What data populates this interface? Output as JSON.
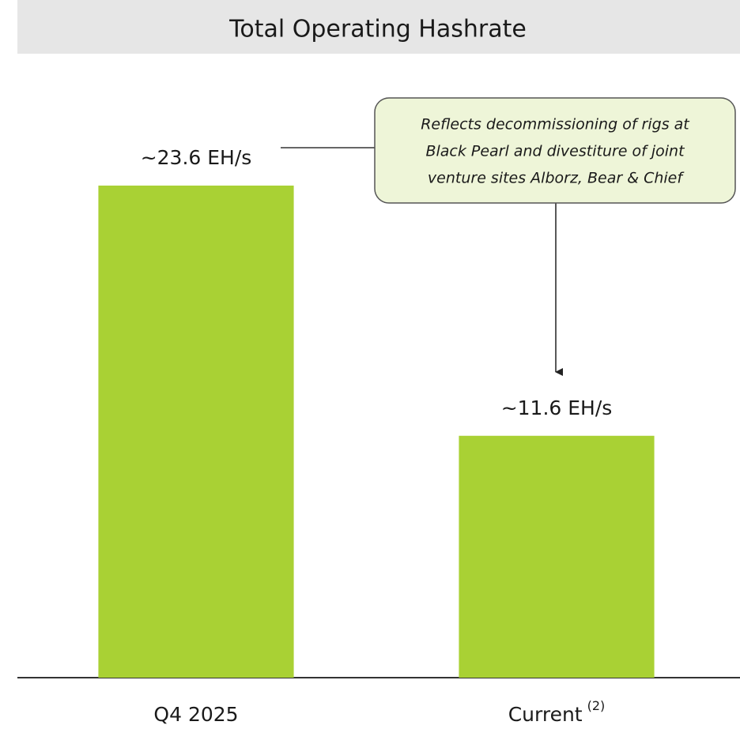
{
  "chart_data": {
    "type": "bar",
    "title": "Total Operating Hashrate",
    "categories": [
      "Q4 2025",
      "Current"
    ],
    "category_superscripts": [
      null,
      "(2)"
    ],
    "values": [
      23.6,
      11.6
    ],
    "value_labels": [
      "~23.6 EH/s",
      "~11.6 EH/s"
    ],
    "color": "#a9d134",
    "ylim": [
      0,
      30
    ],
    "annotation": {
      "lines": [
        "Reflects decommissioning of rigs at",
        "Black Pearl and divestiture of joint",
        "venture sites Alborz, Bear & Chief"
      ]
    }
  }
}
